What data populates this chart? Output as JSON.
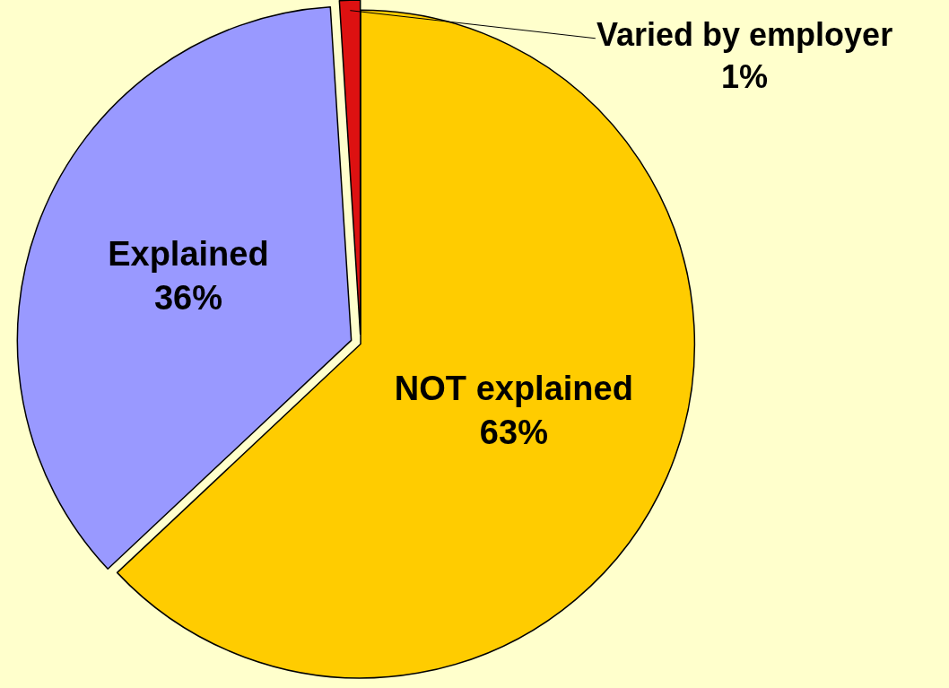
{
  "chart_data": {
    "type": "pie",
    "categories": [
      "NOT explained",
      "Explained",
      "Varied by employer"
    ],
    "values": [
      63,
      36,
      1
    ],
    "value_labels": [
      "63%",
      "36%",
      "1%"
    ],
    "colors": [
      "#ffcc00",
      "#9999ff",
      "#dd1111"
    ],
    "legend": false
  }
}
